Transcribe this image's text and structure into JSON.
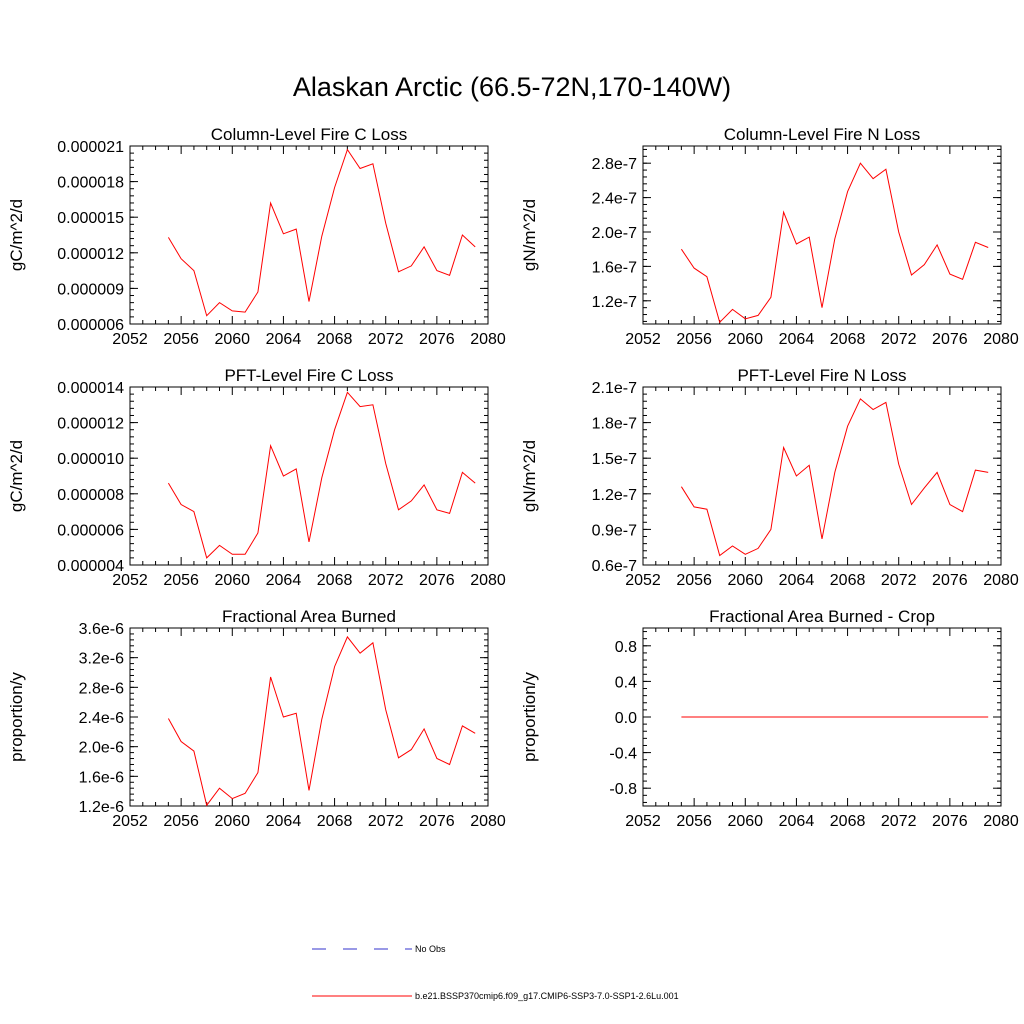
{
  "title": "Alaskan Arctic (66.5-72N,170-140W)",
  "xticks": [
    "2052",
    "2056",
    "2060",
    "2064",
    "2068",
    "2072",
    "2076",
    "2080"
  ],
  "colors": {
    "model": "#ff0000",
    "obs": "#3333cc",
    "axis": "#000000"
  },
  "legend": {
    "obs_label": "No Obs",
    "model_label": "b.e21.BSSP370cmip6.f09_g17.CMIP6-SSP3-7.0-SSP1-2.6Lu.001"
  },
  "chart_data": [
    {
      "type": "line",
      "title": "Column-Level Fire C Loss",
      "ylabel": "gC/m^2/d",
      "xlim": [
        2052,
        2080
      ],
      "ylim": [
        6e-06,
        2.1e-05
      ],
      "yticks": [
        6e-06,
        9e-06,
        1.2e-05,
        1.5e-05,
        1.8e-05,
        2.1e-05
      ],
      "ytick_labels": [
        "0.000006",
        "0.000009",
        "0.000012",
        "0.000015",
        "0.000018",
        "0.000021"
      ],
      "x": [
        2055,
        2056,
        2057,
        2058,
        2059,
        2060,
        2061,
        2062,
        2063,
        2064,
        2065,
        2066,
        2067,
        2068,
        2069,
        2070,
        2071,
        2072,
        2073,
        2074,
        2075,
        2076,
        2077,
        2078,
        2079
      ],
      "values": [
        1.33e-05,
        1.15e-05,
        1.05e-05,
        6.7e-06,
        7.8e-06,
        7.1e-06,
        7e-06,
        8.7e-06,
        1.62e-05,
        1.36e-05,
        1.4e-05,
        7.9e-06,
        1.34e-05,
        1.75e-05,
        2.07e-05,
        1.91e-05,
        1.95e-05,
        1.45e-05,
        1.04e-05,
        1.09e-05,
        1.25e-05,
        1.05e-05,
        1.01e-05,
        1.35e-05,
        1.25e-05
      ]
    },
    {
      "type": "line",
      "title": "Column-Level Fire N Loss",
      "ylabel": "gN/m^2/d",
      "xlim": [
        2052,
        2080
      ],
      "ylim": [
        9.3e-08,
        3e-07
      ],
      "yticks": [
        1.2e-07,
        1.6e-07,
        2e-07,
        2.4e-07,
        2.8e-07
      ],
      "ytick_labels": [
        "1.2e-7",
        "1.6e-7",
        "2.0e-7",
        "2.4e-7",
        "2.8e-7"
      ],
      "x": [
        2055,
        2056,
        2057,
        2058,
        2059,
        2060,
        2061,
        2062,
        2063,
        2064,
        2065,
        2066,
        2067,
        2068,
        2069,
        2070,
        2071,
        2072,
        2073,
        2074,
        2075,
        2076,
        2077,
        2078,
        2079
      ],
      "values": [
        1.8e-07,
        1.58e-07,
        1.48e-07,
        9.5e-08,
        1.1e-07,
        9.9e-08,
        1.03e-07,
        1.24e-07,
        2.23e-07,
        1.86e-07,
        1.94e-07,
        1.12e-07,
        1.92e-07,
        2.47e-07,
        2.8e-07,
        2.62e-07,
        2.73e-07,
        2e-07,
        1.5e-07,
        1.62e-07,
        1.85e-07,
        1.51e-07,
        1.45e-07,
        1.88e-07,
        1.82e-07
      ]
    },
    {
      "type": "line",
      "title": "PFT-Level Fire C Loss",
      "ylabel": "gC/m^2/d",
      "xlim": [
        2052,
        2080
      ],
      "ylim": [
        4e-06,
        1.4e-05
      ],
      "yticks": [
        4e-06,
        6e-06,
        8e-06,
        1e-05,
        1.2e-05,
        1.4e-05
      ],
      "ytick_labels": [
        "0.000004",
        "0.000006",
        "0.000008",
        "0.000010",
        "0.000012",
        "0.000014"
      ],
      "x": [
        2055,
        2056,
        2057,
        2058,
        2059,
        2060,
        2061,
        2062,
        2063,
        2064,
        2065,
        2066,
        2067,
        2068,
        2069,
        2070,
        2071,
        2072,
        2073,
        2074,
        2075,
        2076,
        2077,
        2078,
        2079
      ],
      "values": [
        8.6e-06,
        7.4e-06,
        7e-06,
        4.4e-06,
        5.1e-06,
        4.6e-06,
        4.6e-06,
        5.8e-06,
        1.07e-05,
        9e-06,
        9.4e-06,
        5.3e-06,
        8.9e-06,
        1.16e-05,
        1.37e-05,
        1.29e-05,
        1.3e-05,
        9.7e-06,
        7.1e-06,
        7.6e-06,
        8.5e-06,
        7.1e-06,
        6.9e-06,
        9.2e-06,
        8.6e-06
      ]
    },
    {
      "type": "line",
      "title": "PFT-Level Fire N Loss",
      "ylabel": "gN/m^2/d",
      "xlim": [
        2052,
        2080
      ],
      "ylim": [
        6e-08,
        2.1e-07
      ],
      "yticks": [
        6e-08,
        9e-08,
        1.2e-07,
        1.5e-07,
        1.8e-07,
        2.1e-07
      ],
      "ytick_labels": [
        "0.6e-7",
        "0.9e-7",
        "1.2e-7",
        "1.5e-7",
        "1.8e-7",
        "2.1e-7"
      ],
      "x": [
        2055,
        2056,
        2057,
        2058,
        2059,
        2060,
        2061,
        2062,
        2063,
        2064,
        2065,
        2066,
        2067,
        2068,
        2069,
        2070,
        2071,
        2072,
        2073,
        2074,
        2075,
        2076,
        2077,
        2078,
        2079
      ],
      "values": [
        1.26e-07,
        1.09e-07,
        1.07e-07,
        6.8e-08,
        7.6e-08,
        6.9e-08,
        7.4e-08,
        9e-08,
        1.59e-07,
        1.35e-07,
        1.44e-07,
        8.2e-08,
        1.38e-07,
        1.77e-07,
        2e-07,
        1.91e-07,
        1.97e-07,
        1.45e-07,
        1.11e-07,
        1.25e-07,
        1.38e-07,
        1.11e-07,
        1.05e-07,
        1.4e-07,
        1.38e-07
      ]
    },
    {
      "type": "line",
      "title": "Fractional Area Burned",
      "ylabel": "proportion/y",
      "xlim": [
        2052,
        2080
      ],
      "ylim": [
        1.2e-06,
        3.6e-06
      ],
      "yticks": [
        1.2e-06,
        1.6e-06,
        2e-06,
        2.4e-06,
        2.8e-06,
        3.2e-06,
        3.6e-06
      ],
      "ytick_labels": [
        "1.2e-6",
        "1.6e-6",
        "2.0e-6",
        "2.4e-6",
        "2.8e-6",
        "3.2e-6",
        "3.6e-6"
      ],
      "x": [
        2055,
        2056,
        2057,
        2058,
        2059,
        2060,
        2061,
        2062,
        2063,
        2064,
        2065,
        2066,
        2067,
        2068,
        2069,
        2070,
        2071,
        2072,
        2073,
        2074,
        2075,
        2076,
        2077,
        2078,
        2079
      ],
      "values": [
        2.38e-06,
        2.07e-06,
        1.94e-06,
        1.21e-06,
        1.44e-06,
        1.3e-06,
        1.37e-06,
        1.65e-06,
        2.94e-06,
        2.4e-06,
        2.45e-06,
        1.41e-06,
        2.37e-06,
        3.08e-06,
        3.48e-06,
        3.26e-06,
        3.4e-06,
        2.5e-06,
        1.85e-06,
        1.96e-06,
        2.24e-06,
        1.84e-06,
        1.76e-06,
        2.28e-06,
        2.18e-06
      ]
    },
    {
      "type": "line",
      "title": "Fractional Area Burned - Crop",
      "ylabel": "proportion/y",
      "xlim": [
        2052,
        2080
      ],
      "ylim": [
        -1.0,
        1.0
      ],
      "yticks": [
        -0.8,
        -0.4,
        0.0,
        0.4,
        0.8
      ],
      "ytick_labels": [
        "-0.8",
        "-0.4",
        "0.0",
        "0.4",
        "0.8"
      ],
      "x": [
        2055,
        2056,
        2057,
        2058,
        2059,
        2060,
        2061,
        2062,
        2063,
        2064,
        2065,
        2066,
        2067,
        2068,
        2069,
        2070,
        2071,
        2072,
        2073,
        2074,
        2075,
        2076,
        2077,
        2078,
        2079
      ],
      "values": [
        0,
        0,
        0,
        0,
        0,
        0,
        0,
        0,
        0,
        0,
        0,
        0,
        0,
        0,
        0,
        0,
        0,
        0,
        0,
        0,
        0,
        0,
        0,
        0,
        0
      ]
    }
  ]
}
